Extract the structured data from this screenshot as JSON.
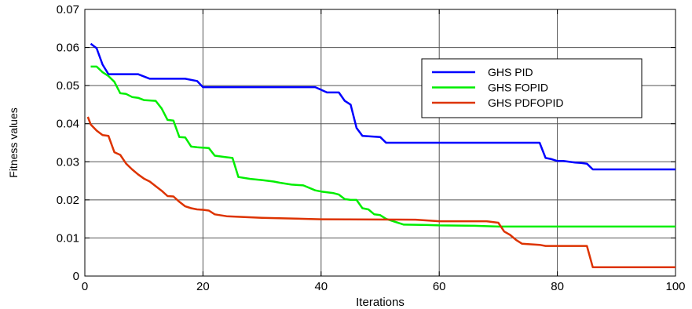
{
  "chart_data": {
    "type": "line",
    "title": "",
    "xlabel": "Iterations",
    "ylabel": "Fitness values",
    "xlim": [
      0,
      100
    ],
    "ylim": [
      0,
      0.07
    ],
    "xticks": [
      0,
      20,
      40,
      60,
      80,
      100
    ],
    "yticks": [
      0,
      0.01,
      0.02,
      0.03,
      0.04,
      0.05,
      0.06,
      0.07
    ],
    "xtick_labels": [
      "0",
      "20",
      "40",
      "60",
      "80",
      "100"
    ],
    "ytick_labels": [
      "0",
      "0.01",
      "0.02",
      "0.03",
      "0.04",
      "0.05",
      "0.06",
      "0.07"
    ],
    "grid": true,
    "legend_position": "upper-right",
    "series": [
      {
        "name": "GHS PID",
        "color": "#0000ff",
        "x": [
          1,
          2,
          3,
          4,
          9,
          11,
          17,
          19,
          20,
          39,
          41,
          43,
          44,
          45,
          46,
          47,
          48,
          50,
          51,
          77,
          78,
          79,
          80,
          81,
          83,
          84,
          85,
          86,
          100
        ],
        "y": [
          0.061,
          0.0598,
          0.0555,
          0.053,
          0.053,
          0.0518,
          0.0518,
          0.0512,
          0.0496,
          0.0496,
          0.0482,
          0.0482,
          0.046,
          0.045,
          0.0389,
          0.0368,
          0.0367,
          0.0365,
          0.035,
          0.035,
          0.031,
          0.0307,
          0.0302,
          0.0302,
          0.0298,
          0.0297,
          0.0295,
          0.028,
          0.028
        ]
      },
      {
        "name": "GHS FOPID",
        "color": "#00ee00",
        "x": [
          1,
          2,
          3,
          4,
          5,
          6,
          7,
          8,
          9,
          10,
          12,
          13,
          14,
          15,
          16,
          17,
          18,
          19,
          21,
          22,
          24,
          25,
          26,
          28,
          30,
          32,
          33,
          35,
          37,
          39,
          40,
          42,
          43,
          44,
          45,
          46,
          47,
          48,
          49,
          50,
          51,
          52,
          53,
          54,
          58,
          60,
          66,
          70,
          71,
          100
        ],
        "y": [
          0.055,
          0.055,
          0.0535,
          0.0525,
          0.051,
          0.048,
          0.0478,
          0.047,
          0.0468,
          0.0462,
          0.046,
          0.044,
          0.041,
          0.0408,
          0.0365,
          0.0364,
          0.034,
          0.0338,
          0.0336,
          0.0316,
          0.0312,
          0.031,
          0.026,
          0.0255,
          0.0252,
          0.0248,
          0.0245,
          0.024,
          0.0238,
          0.0225,
          0.0222,
          0.0218,
          0.0214,
          0.0202,
          0.02,
          0.02,
          0.0178,
          0.0175,
          0.0162,
          0.016,
          0.015,
          0.0145,
          0.014,
          0.0135,
          0.0134,
          0.0133,
          0.0132,
          0.013,
          0.013,
          0.013
        ]
      },
      {
        "name": "GHS PDFOPID",
        "color": "#dd3300",
        "x": [
          0.5,
          1,
          2,
          3,
          4,
          5,
          6,
          7,
          8,
          9,
          10,
          11,
          12,
          13,
          14,
          15,
          16,
          17,
          18,
          19,
          20,
          21,
          22,
          24,
          30,
          40,
          56,
          60,
          68,
          70,
          71,
          72,
          73,
          74,
          75,
          76,
          77,
          78,
          85,
          86,
          100
        ],
        "y": [
          0.0418,
          0.0398,
          0.0382,
          0.037,
          0.0368,
          0.0325,
          0.0318,
          0.0295,
          0.028,
          0.0267,
          0.0256,
          0.0248,
          0.0236,
          0.0224,
          0.021,
          0.0209,
          0.0195,
          0.0183,
          0.0178,
          0.0175,
          0.0174,
          0.0172,
          0.0162,
          0.0157,
          0.0153,
          0.0149,
          0.0148,
          0.0144,
          0.0144,
          0.014,
          0.0117,
          0.0108,
          0.0095,
          0.0085,
          0.0084,
          0.0083,
          0.0082,
          0.0079,
          0.0079,
          0.0023,
          0.0023
        ]
      }
    ]
  }
}
